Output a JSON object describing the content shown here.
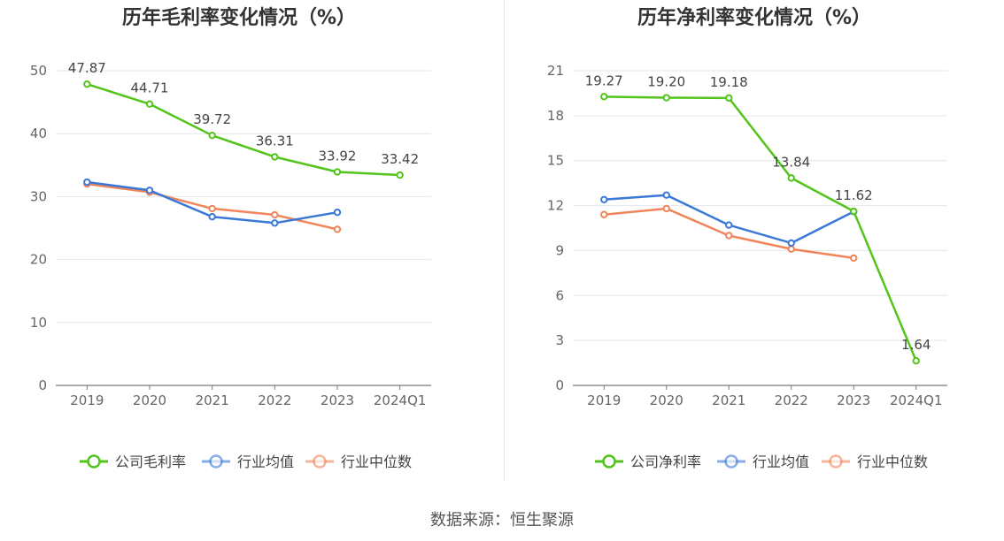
{
  "source": "数据来源：恒生聚源",
  "chart_data": [
    {
      "type": "line",
      "title": "历年毛利率变化情况（%）",
      "categories": [
        "2019",
        "2020",
        "2021",
        "2022",
        "2023",
        "2024Q1"
      ],
      "ylim": [
        0,
        50
      ],
      "yticks": [
        0,
        10,
        20,
        30,
        40,
        50
      ],
      "grid": true,
      "legend_position": "bottom",
      "series": [
        {
          "name": "公司毛利率",
          "color": "#52c41a",
          "values": [
            47.87,
            44.71,
            39.72,
            36.31,
            33.92,
            33.42
          ],
          "labels": [
            "47.87",
            "44.71",
            "39.72",
            "36.31",
            "33.92",
            "33.42"
          ]
        },
        {
          "name": "行业均值",
          "color": "#3a78d8",
          "values": [
            32.3,
            31.0,
            26.8,
            25.8,
            27.5,
            null
          ]
        },
        {
          "name": "行业中位数",
          "color": "#f0855a",
          "values": [
            32.0,
            30.7,
            28.1,
            27.1,
            24.8,
            null
          ]
        }
      ]
    },
    {
      "type": "line",
      "title": "历年净利率变化情况（%）",
      "categories": [
        "2019",
        "2020",
        "2021",
        "2022",
        "2023",
        "2024Q1"
      ],
      "ylim": [
        0,
        21
      ],
      "yticks": [
        0,
        3,
        6,
        9,
        12,
        15,
        18,
        21
      ],
      "grid": true,
      "legend_position": "bottom",
      "series": [
        {
          "name": "公司净利率",
          "color": "#52c41a",
          "values": [
            19.27,
            19.2,
            19.18,
            13.84,
            11.62,
            1.64
          ],
          "labels": [
            "19.27",
            "19.20",
            "19.18",
            "13.84",
            "11.62",
            "1.64"
          ]
        },
        {
          "name": "行业均值",
          "color": "#3a78d8",
          "values": [
            12.4,
            12.7,
            10.7,
            9.5,
            11.6,
            null
          ]
        },
        {
          "name": "行业中位数",
          "color": "#f0855a",
          "values": [
            11.4,
            11.8,
            10.0,
            9.1,
            8.5,
            null
          ]
        }
      ]
    }
  ]
}
